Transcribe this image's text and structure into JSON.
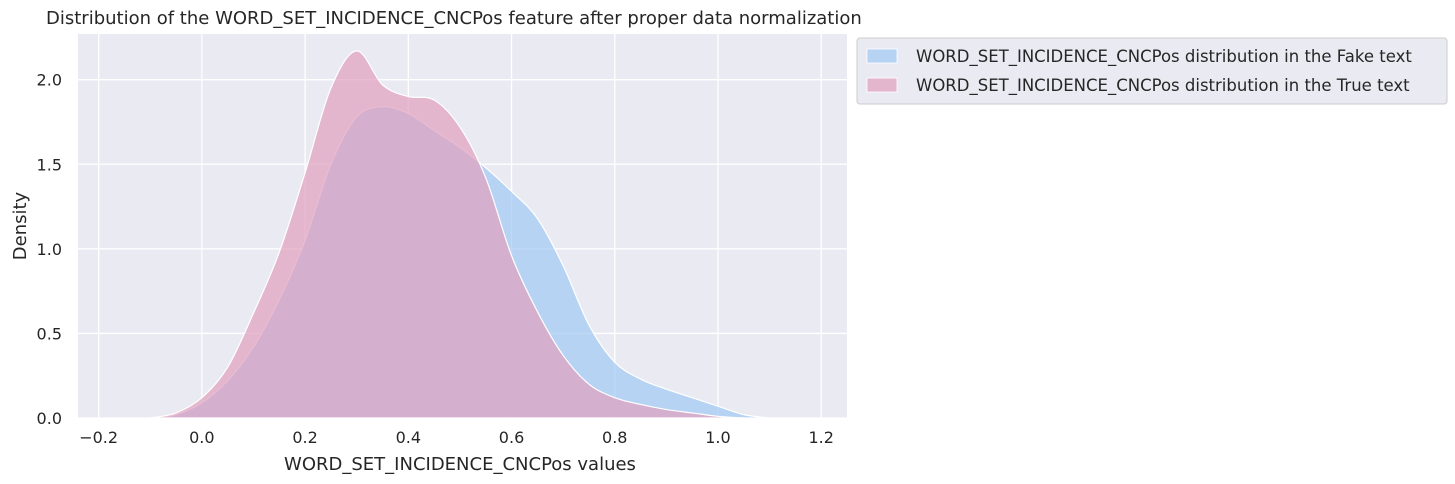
{
  "chart_data": {
    "type": "area",
    "title": "Distribution of the WORD_SET_INCIDENCE_CNCPos feature after proper data normalization",
    "xlabel": "WORD_SET_INCIDENCE_CNCPos values",
    "ylabel": "Density",
    "xlim": [
      -0.24,
      1.25
    ],
    "ylim": [
      0,
      2.27
    ],
    "xticks": [
      -0.2,
      0.0,
      0.2,
      0.4,
      0.6,
      0.8,
      1.0,
      1.2
    ],
    "xtick_labels": [
      "−0.2",
      "0.0",
      "0.2",
      "0.4",
      "0.6",
      "0.8",
      "1.0",
      "1.2"
    ],
    "yticks": [
      0.0,
      0.5,
      1.0,
      1.5,
      2.0
    ],
    "ytick_labels": [
      "0.0",
      "0.5",
      "1.0",
      "1.5",
      "2.0"
    ],
    "grid": true,
    "legend_position": "outside upper right",
    "series": [
      {
        "name": "WORD_SET_INCIDENCE_CNCPos distribution in the Fake text",
        "color": "#a1c9f4",
        "x": [
          -0.1,
          -0.05,
          0.0,
          0.05,
          0.1,
          0.15,
          0.2,
          0.25,
          0.3,
          0.35,
          0.4,
          0.45,
          0.5,
          0.55,
          0.6,
          0.65,
          0.7,
          0.75,
          0.8,
          0.85,
          0.9,
          0.95,
          1.0,
          1.05,
          1.1
        ],
        "y": [
          0.0,
          0.02,
          0.09,
          0.22,
          0.42,
          0.7,
          1.05,
          1.5,
          1.78,
          1.84,
          1.8,
          1.7,
          1.6,
          1.48,
          1.34,
          1.18,
          0.9,
          0.55,
          0.33,
          0.23,
          0.17,
          0.12,
          0.07,
          0.02,
          0.0
        ]
      },
      {
        "name": "WORD_SET_INCIDENCE_CNCPos distribution in the True text",
        "color": "#e0a0be",
        "x": [
          -0.1,
          -0.05,
          0.0,
          0.05,
          0.1,
          0.15,
          0.2,
          0.25,
          0.3,
          0.35,
          0.4,
          0.45,
          0.5,
          0.55,
          0.6,
          0.65,
          0.7,
          0.75,
          0.8,
          0.85,
          0.9,
          0.95,
          1.0,
          1.05
        ],
        "y": [
          0.0,
          0.03,
          0.12,
          0.3,
          0.62,
          0.98,
          1.45,
          1.95,
          2.17,
          1.97,
          1.9,
          1.88,
          1.72,
          1.42,
          0.96,
          0.63,
          0.37,
          0.2,
          0.12,
          0.08,
          0.05,
          0.03,
          0.01,
          0.0
        ]
      }
    ]
  }
}
